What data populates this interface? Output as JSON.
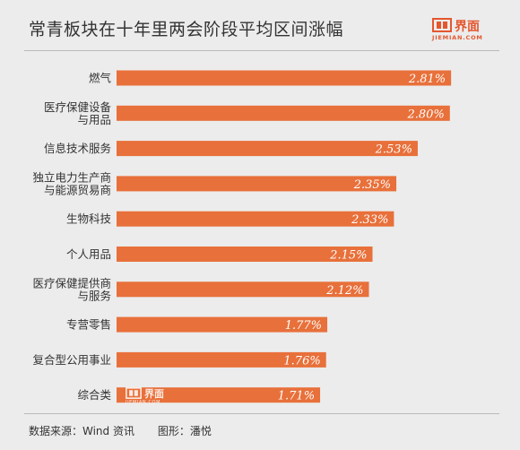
{
  "chart_data": {
    "type": "bar",
    "orientation": "horizontal",
    "title": "常青板块在十年里两会阶段平均区间涨幅",
    "categories": [
      [
        "燃气"
      ],
      [
        "医疗保健设备",
        "与用品"
      ],
      [
        "信息技术服务"
      ],
      [
        "独立电力生产商",
        "与能源贸易商"
      ],
      [
        "生物科技"
      ],
      [
        "个人用品"
      ],
      [
        "医疗保健提供商",
        "与服务"
      ],
      [
        "专营零售"
      ],
      [
        "复合型公用事业"
      ],
      [
        "综合类"
      ]
    ],
    "values": [
      2.81,
      2.8,
      2.53,
      2.35,
      2.33,
      2.15,
      2.12,
      1.77,
      1.76,
      1.71
    ],
    "value_labels": [
      "2.81%",
      "2.80%",
      "2.53%",
      "2.35%",
      "2.33%",
      "2.15%",
      "2.12%",
      "1.77%",
      "1.76%",
      "1.71%"
    ],
    "xlim": [
      0,
      3.05
    ],
    "grid": false,
    "legend": "none",
    "colors": {
      "bar": "#e8703a",
      "value_label": "#ffffff",
      "category_label": "#333333"
    }
  },
  "logo": {
    "name": "界面",
    "sub": "JIEMIAN.COM",
    "icon": "jiemian-logo-icon",
    "color": "#e4572e"
  },
  "watermark": {
    "name": "界面",
    "sub": "JIEMIAN.COM"
  },
  "footer": {
    "source": "数据来源：Wind 资讯",
    "credit": "图形：潘悦"
  }
}
